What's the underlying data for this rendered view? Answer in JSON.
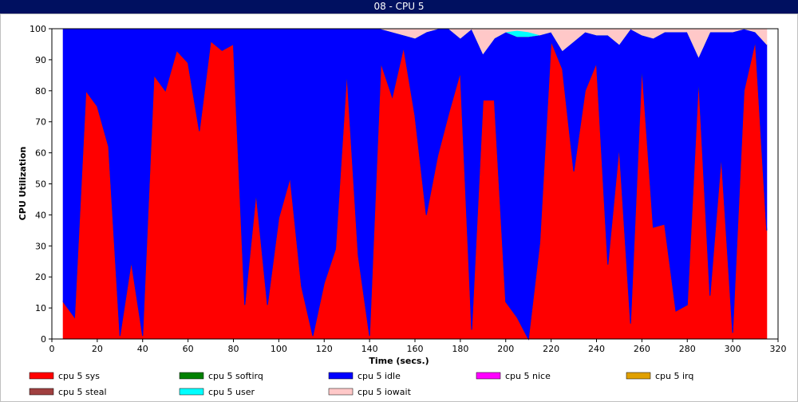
{
  "chart_data": {
    "type": "stacked_area",
    "title": "08 - CPU 5",
    "x_label": "Time (secs.)",
    "y_label": "CPU Utilization",
    "x": [
      5,
      10,
      15,
      20,
      25,
      30,
      35,
      40,
      45,
      50,
      55,
      60,
      65,
      70,
      75,
      80,
      85,
      90,
      95,
      100,
      105,
      110,
      115,
      120,
      125,
      130,
      135,
      140,
      145,
      150,
      155,
      160,
      165,
      170,
      175,
      180,
      185,
      190,
      195,
      200,
      205,
      210,
      215,
      220,
      225,
      230,
      235,
      240,
      245,
      250,
      255,
      260,
      265,
      270,
      275,
      280,
      285,
      290,
      295,
      300,
      305,
      310,
      315
    ],
    "xlim": [
      0,
      320
    ],
    "xticks": [
      0,
      20,
      40,
      60,
      80,
      100,
      120,
      140,
      160,
      180,
      200,
      220,
      240,
      260,
      280,
      300,
      320
    ],
    "ylim": [
      0,
      100
    ],
    "yticks": [
      0,
      10,
      20,
      30,
      40,
      50,
      60,
      70,
      80,
      90,
      100
    ],
    "series": [
      {
        "name": "cpu 5 sys",
        "color": "#ff0000",
        "values": [
          12,
          7,
          80,
          75,
          62,
          1,
          25,
          1,
          85,
          80,
          93,
          89,
          67,
          96,
          93,
          95,
          11,
          47,
          11,
          39,
          52,
          17,
          1,
          18,
          29,
          86,
          27,
          1,
          89,
          78,
          94,
          72,
          40,
          59,
          73,
          86,
          3,
          77,
          77,
          12,
          7,
          0,
          31,
          96,
          87,
          54,
          80,
          89,
          24,
          62,
          5,
          88,
          36,
          37,
          9,
          11,
          84,
          14,
          59,
          2,
          80,
          96,
          35
        ]
      },
      {
        "name": "cpu 5 softirq",
        "color": "#008000",
        "values": [
          0,
          0,
          0,
          0,
          0,
          0,
          0,
          0,
          0,
          0,
          0,
          0,
          0,
          0,
          0,
          0,
          0,
          0,
          0,
          0,
          0,
          0,
          0,
          0,
          0,
          0,
          0,
          0,
          0,
          0,
          0,
          0,
          0,
          0,
          0,
          0,
          0,
          0,
          0,
          0,
          0,
          0,
          0,
          0,
          0,
          0,
          0,
          0,
          0,
          0,
          0,
          0,
          0,
          0,
          0,
          0,
          0,
          0,
          0,
          0,
          0,
          0,
          0
        ]
      },
      {
        "name": "cpu 5 idle",
        "color": "#0000ff",
        "values": [
          88,
          93,
          20,
          25,
          38,
          99,
          75,
          99,
          15,
          20,
          7,
          11,
          33,
          4,
          7,
          5,
          89,
          53,
          89,
          61,
          48,
          83,
          99,
          82,
          71,
          14,
          73,
          99,
          11,
          21,
          4,
          25,
          59,
          41,
          27,
          11,
          97,
          15,
          20,
          87,
          90.5,
          97.5,
          67,
          3,
          6,
          42,
          19,
          9,
          74,
          33,
          95,
          10,
          61,
          62,
          90,
          88,
          7,
          85,
          40,
          97,
          20,
          3,
          60
        ]
      },
      {
        "name": "cpu 5 nice",
        "color": "#ff00ff",
        "values": [
          0,
          0,
          0,
          0,
          0,
          0,
          0,
          0,
          0,
          0,
          0,
          0,
          0,
          0,
          0,
          0,
          0,
          0,
          0,
          0,
          0,
          0,
          0,
          0,
          0,
          0,
          0,
          0,
          0,
          0,
          0,
          0,
          0,
          0,
          0,
          0,
          0,
          0,
          0,
          0,
          0,
          0,
          0,
          0,
          0,
          0,
          0,
          0,
          0,
          0,
          0,
          0,
          0,
          0,
          0,
          0,
          0,
          0,
          0,
          0,
          0,
          0,
          0
        ]
      },
      {
        "name": "cpu 5 irq",
        "color": "#e0a000",
        "values": [
          0,
          0,
          0,
          0,
          0,
          0,
          0,
          0,
          0,
          0,
          0,
          0,
          0,
          0,
          0,
          0,
          0,
          0,
          0,
          0,
          0,
          0,
          0,
          0,
          0,
          0,
          0,
          0,
          0,
          0,
          0,
          0,
          0,
          0,
          0,
          0,
          0,
          0,
          0,
          0,
          0,
          0,
          0,
          0,
          0,
          0,
          0,
          0,
          0,
          0,
          0,
          0,
          0,
          0,
          0,
          0,
          0,
          0,
          0,
          0,
          0,
          0,
          0
        ]
      },
      {
        "name": "cpu 5 steal",
        "color": "#a04040",
        "values": [
          0,
          0,
          0,
          0,
          0,
          0,
          0,
          0,
          0,
          0,
          0,
          0,
          0,
          0,
          0,
          0,
          0,
          0,
          0,
          0,
          0,
          0,
          0,
          0,
          0,
          0,
          0,
          0,
          0,
          0,
          0,
          0,
          0,
          0,
          0,
          0,
          0,
          0,
          0,
          0,
          0,
          0,
          0,
          0,
          0,
          0,
          0,
          0,
          0,
          0,
          0,
          0,
          0,
          0,
          0,
          0,
          0,
          0,
          0,
          0,
          0,
          0,
          0
        ]
      },
      {
        "name": "cpu 5 user",
        "color": "#00ffff",
        "values": [
          0,
          0,
          0,
          0,
          0,
          0,
          0,
          0,
          0,
          0,
          0,
          0,
          0,
          0,
          0,
          0,
          0,
          0,
          0,
          0,
          0,
          0,
          0,
          0,
          0,
          0,
          0,
          0,
          0,
          0,
          0,
          0,
          0,
          0,
          0,
          0,
          0,
          0,
          0,
          0,
          2,
          1.5,
          0,
          0,
          0,
          0,
          0,
          0,
          0,
          0,
          0,
          0,
          0,
          0,
          0,
          0,
          0,
          0,
          0,
          0,
          0,
          0,
          0
        ]
      },
      {
        "name": "cpu 5 iowait",
        "color": "#ffc8c8",
        "values": [
          0,
          0,
          0,
          0,
          0,
          0,
          0,
          0,
          0,
          0,
          0,
          0,
          0,
          0,
          0,
          0,
          0,
          0,
          0,
          0,
          0,
          0,
          0,
          0,
          0,
          0,
          0,
          0,
          0,
          1,
          2,
          3,
          1,
          0,
          0,
          3,
          0,
          8,
          3,
          1,
          0.5,
          1,
          2,
          1,
          7,
          4,
          1,
          2,
          2,
          5,
          0,
          2,
          3,
          1,
          1,
          1,
          9,
          1,
          1,
          1,
          0,
          1,
          5
        ]
      }
    ]
  }
}
